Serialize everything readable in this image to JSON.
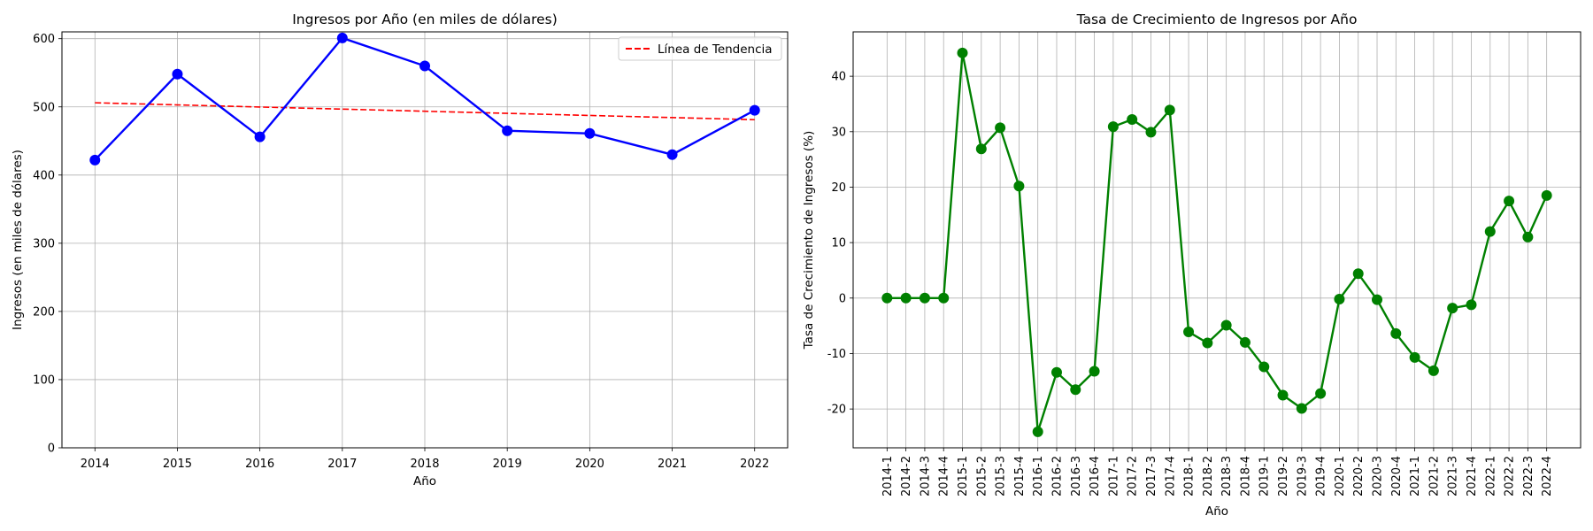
{
  "chart_data": [
    {
      "type": "line",
      "title": "Ingresos por Año (en miles de dólares)",
      "xlabel": "Año",
      "ylabel": "Ingresos (en miles de dólares)",
      "x": [
        2014,
        2015,
        2016,
        2017,
        2018,
        2019,
        2020,
        2021,
        2022
      ],
      "ylim": [
        0,
        610
      ],
      "yticks": [
        0,
        100,
        200,
        300,
        400,
        500,
        600
      ],
      "grid": true,
      "legend_position": "top-right",
      "series": [
        {
          "values": [
            422,
            548,
            456,
            601,
            560,
            465,
            461,
            430,
            495
          ],
          "color": "#0000ff",
          "style": "solid",
          "marker": "circle"
        },
        {
          "name": "Línea de Tendencia",
          "values": [
            506,
            502.9,
            499.8,
            496.7,
            493.6,
            490.5,
            487.4,
            484.3,
            481.2
          ],
          "color": "#ff0000",
          "style": "dashed",
          "marker": "none"
        }
      ]
    },
    {
      "type": "line",
      "title": "Tasa de Crecimiento de Ingresos por Año",
      "xlabel": "Año",
      "ylabel": "Tasa de Crecimiento de Ingresos (%)",
      "categories": [
        "2014-1",
        "2014-2",
        "2014-3",
        "2014-4",
        "2015-1",
        "2015-2",
        "2015-3",
        "2015-4",
        "2016-1",
        "2016-2",
        "2016-3",
        "2016-4",
        "2017-1",
        "2017-2",
        "2017-3",
        "2017-4",
        "2018-1",
        "2018-2",
        "2018-3",
        "2018-4",
        "2019-1",
        "2019-2",
        "2019-3",
        "2019-4",
        "2020-1",
        "2020-2",
        "2020-3",
        "2020-4",
        "2021-1",
        "2021-2",
        "2021-3",
        "2021-4",
        "2022-1",
        "2022-2",
        "2022-3",
        "2022-4"
      ],
      "ylim": [
        -27,
        48
      ],
      "yticks": [
        -20,
        -10,
        0,
        10,
        20,
        30,
        40
      ],
      "grid": true,
      "series": [
        {
          "values": [
            0,
            0,
            0,
            0,
            44.2,
            26.9,
            30.7,
            20.2,
            -24.1,
            -13.4,
            -16.5,
            -13.2,
            30.9,
            32.2,
            29.9,
            33.9,
            -6.1,
            -8.1,
            -4.9,
            -8.0,
            -12.4,
            -17.5,
            -19.9,
            -17.2,
            -0.2,
            4.4,
            -0.3,
            -6.4,
            -10.7,
            -13.1,
            -1.8,
            -1.2,
            12.0,
            17.5,
            11.0,
            18.5
          ],
          "color": "#008000",
          "style": "solid",
          "marker": "circle"
        }
      ]
    }
  ]
}
